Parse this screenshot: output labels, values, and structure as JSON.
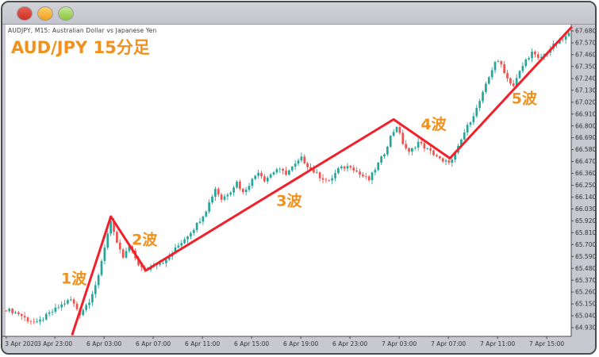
{
  "window": {
    "controls": [
      {
        "name": "close-button",
        "icon": "traffic-light-red",
        "color_top": "#e85d50",
        "color_bottom": "#cd3127"
      },
      {
        "name": "minimize-button",
        "icon": "traffic-light-yellow",
        "color_top": "#fdd069",
        "color_bottom": "#f2a01f"
      },
      {
        "name": "zoom-button",
        "icon": "traffic-light-green",
        "color_top": "#c3e596",
        "color_bottom": "#8cc63e"
      }
    ],
    "symbol_line": "AUDJPY, M15:  Australian Dollar vs Japanese Yen",
    "chart_title": "AUD/JPY 15分足"
  },
  "colors": {
    "chrome_gray": "#c8c8d0",
    "plot_bg": "#ffffff",
    "axis_line": "#4a4a4a",
    "tick_text": "#333333",
    "bull_candle": "#26a69a",
    "bear_candle": "#ef5350",
    "overlay_red": "#f1212b",
    "accent_orange": "#f0911d"
  },
  "chart_data": {
    "type": "candlestick",
    "title": "AUD/JPY 15分足",
    "symbol": "AUDJPY",
    "timeframe": "M15",
    "description": "Australian Dollar vs Japanese Yen, 15-minute chart with 5-wave Elliott impulse annotation",
    "ylim": [
      64.83,
      67.75
    ],
    "grid": false,
    "y_ticks": [
      "67.680",
      "67.570",
      "67.460",
      "67.350",
      "67.240",
      "67.130",
      "67.020",
      "66.910",
      "66.800",
      "66.690",
      "66.580",
      "66.470",
      "66.360",
      "66.250",
      "66.140",
      "66.030",
      "65.920",
      "65.810",
      "65.700",
      "65.590",
      "65.480",
      "65.370",
      "65.260",
      "65.150",
      "65.040",
      "64.930"
    ],
    "y_tick_top": 67.68,
    "y_tick_step": 0.11,
    "x_ticks": [
      {
        "label": "3 Apr 2020",
        "i": 0.0
      },
      {
        "label": "3 Apr 23:00",
        "i": 15.8
      },
      {
        "label": "6 Apr 03:00",
        "i": 31.8
      },
      {
        "label": "6 Apr 07:00",
        "i": 47.8
      },
      {
        "label": "6 Apr 11:00",
        "i": 63.8
      },
      {
        "label": "6 Apr 15:00",
        "i": 79.8
      },
      {
        "label": "6 Apr 19:00",
        "i": 95.8
      },
      {
        "label": "6 Apr 23:00",
        "i": 111.8
      },
      {
        "label": "7 Apr 03:00",
        "i": 127.8
      },
      {
        "label": "7 Apr 07:00",
        "i": 143.8
      },
      {
        "label": "7 Apr 11:00",
        "i": 159.8
      },
      {
        "label": "7 Apr 15:00",
        "i": 175.8
      }
    ],
    "candle_count": 184,
    "price_path": [
      [
        0,
        65.1
      ],
      [
        4,
        65.06
      ],
      [
        7,
        65.0
      ],
      [
        10,
        64.97
      ],
      [
        13,
        65.04
      ],
      [
        16,
        65.1
      ],
      [
        19,
        65.16
      ],
      [
        21,
        65.19
      ],
      [
        24,
        65.06
      ],
      [
        27,
        65.18
      ],
      [
        30,
        65.4
      ],
      [
        32,
        65.68
      ],
      [
        34,
        65.93
      ],
      [
        36,
        65.7
      ],
      [
        38,
        65.58
      ],
      [
        40,
        65.68
      ],
      [
        43,
        65.52
      ],
      [
        45,
        65.45
      ],
      [
        48,
        65.52
      ],
      [
        52,
        65.55
      ],
      [
        55,
        65.66
      ],
      [
        61,
        65.85
      ],
      [
        63,
        65.93
      ],
      [
        65,
        66.02
      ],
      [
        68,
        66.22
      ],
      [
        70,
        66.12
      ],
      [
        73,
        66.2
      ],
      [
        75,
        66.28
      ],
      [
        77,
        66.18
      ],
      [
        80,
        66.3
      ],
      [
        82,
        66.38
      ],
      [
        84,
        66.3
      ],
      [
        88,
        66.4
      ],
      [
        91,
        66.36
      ],
      [
        94,
        66.44
      ],
      [
        96,
        66.5
      ],
      [
        99,
        66.4
      ],
      [
        102,
        66.33
      ],
      [
        105,
        66.28
      ],
      [
        108,
        66.4
      ],
      [
        112,
        66.43
      ],
      [
        115,
        66.35
      ],
      [
        118,
        66.3
      ],
      [
        120,
        66.4
      ],
      [
        123,
        66.55
      ],
      [
        125,
        66.7
      ],
      [
        127,
        66.8
      ],
      [
        129,
        66.64
      ],
      [
        131,
        66.55
      ],
      [
        134,
        66.65
      ],
      [
        137,
        66.58
      ],
      [
        140,
        66.52
      ],
      [
        142,
        66.46
      ],
      [
        145,
        66.48
      ],
      [
        147,
        66.6
      ],
      [
        149,
        66.74
      ],
      [
        151,
        66.85
      ],
      [
        153,
        66.96
      ],
      [
        155,
        67.1
      ],
      [
        157,
        67.25
      ],
      [
        159,
        67.4
      ],
      [
        161,
        67.37
      ],
      [
        163,
        67.24
      ],
      [
        165,
        67.17
      ],
      [
        167,
        67.3
      ],
      [
        169,
        67.41
      ],
      [
        171,
        67.48
      ],
      [
        173,
        67.42
      ],
      [
        175,
        67.46
      ],
      [
        177,
        67.52
      ],
      [
        179,
        67.57
      ],
      [
        181,
        67.6
      ],
      [
        183,
        67.65
      ]
    ],
    "elliott_wave_overlay": {
      "color": "#f1212b",
      "points": [
        [
          21.4,
          64.86
        ],
        [
          34,
          65.96
        ],
        [
          45.4,
          65.46
        ],
        [
          126,
          66.86
        ],
        [
          144.3,
          66.5
        ],
        [
          184,
          67.72
        ]
      ]
    },
    "wave_labels": [
      {
        "text": "1波",
        "i": 22.0,
        "price": 65.39
      },
      {
        "text": "2波",
        "i": 45.0,
        "price": 65.75
      },
      {
        "text": "3波",
        "i": 92.0,
        "price": 66.11
      },
      {
        "text": "4波",
        "i": 139.0,
        "price": 66.82
      },
      {
        "text": "5波",
        "i": 168.5,
        "price": 67.06
      }
    ]
  }
}
